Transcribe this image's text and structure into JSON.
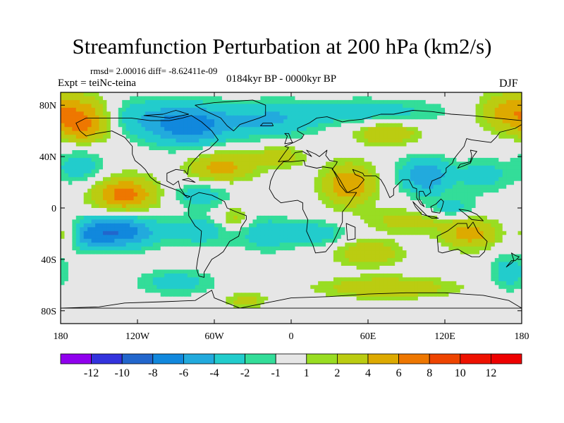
{
  "chart_data": {
    "type": "heatmap",
    "title": "Streamfunction Perturbation at 200 hPa (km2/s)",
    "stats_text": "rmsd= 2.00016 diff= -8.62411e-09",
    "experiment_text": "Expt = teiNc-teina",
    "period_text": "0184kyr BP - 0000kyr BP",
    "season": "DJF",
    "x_range": [
      -180,
      180
    ],
    "y_range": [
      -90,
      90
    ],
    "xticks": [
      {
        "value": -180,
        "label": "180"
      },
      {
        "value": -120,
        "label": "120W"
      },
      {
        "value": -60,
        "label": "60W"
      },
      {
        "value": 0,
        "label": "0"
      },
      {
        "value": 60,
        "label": "60E"
      },
      {
        "value": 120,
        "label": "120E"
      },
      {
        "value": 180,
        "label": "180"
      }
    ],
    "yticks": [
      {
        "value": 80,
        "label": "80N"
      },
      {
        "value": 40,
        "label": "40N"
      },
      {
        "value": 0,
        "label": "0"
      },
      {
        "value": -40,
        "label": "40S"
      },
      {
        "value": -80,
        "label": "80S"
      }
    ],
    "colorbar": {
      "levels": [
        "-12",
        "-10",
        "-8",
        "-6",
        "-4",
        "-2",
        "-1",
        "1",
        "2",
        "4",
        "6",
        "8",
        "10",
        "12"
      ],
      "colors": [
        "#9000ee",
        "#3333dd",
        "#2266cc",
        "#1188dd",
        "#22aadd",
        "#22cccc",
        "#33dd99",
        "#e6e6e6",
        "#99dd22",
        "#bbcc11",
        "#ddaa00",
        "#ee7700",
        "#ee4400",
        "#ee1100",
        "#ee0000"
      ]
    },
    "field_centers": [
      {
        "lon": -165,
        "lat": 72,
        "value": 6,
        "r_lon": 24,
        "r_lat": 16
      },
      {
        "lon": -120,
        "lat": 70,
        "value": -3,
        "r_lon": 30,
        "r_lat": 16
      },
      {
        "lon": -80,
        "lat": 64,
        "value": -7,
        "r_lon": 30,
        "r_lat": 16
      },
      {
        "lon": -20,
        "lat": 68,
        "value": -4,
        "r_lon": 40,
        "r_lat": 14
      },
      {
        "lon": 60,
        "lat": 75,
        "value": -3,
        "r_lon": 60,
        "r_lat": 10
      },
      {
        "lon": 165,
        "lat": 75,
        "value": 4,
        "r_lon": 20,
        "r_lat": 14
      },
      {
        "lon": 75,
        "lat": 58,
        "value": 4,
        "r_lon": 25,
        "r_lat": 9
      },
      {
        "lon": -55,
        "lat": 32,
        "value": 5,
        "r_lon": 25,
        "r_lat": 12
      },
      {
        "lon": -10,
        "lat": 40,
        "value": 3,
        "r_lon": 20,
        "r_lat": 9
      },
      {
        "lon": -130,
        "lat": 10,
        "value": 7,
        "r_lon": 25,
        "r_lat": 14
      },
      {
        "lon": -165,
        "lat": 32,
        "value": -3,
        "r_lon": 20,
        "r_lat": 14
      },
      {
        "lon": -70,
        "lat": 10,
        "value": -3,
        "r_lon": 25,
        "r_lat": 10
      },
      {
        "lon": -135,
        "lat": -18,
        "value": -8,
        "r_lon": 30,
        "r_lat": 13
      },
      {
        "lon": -160,
        "lat": -22,
        "value": -3,
        "r_lon": 15,
        "r_lat": 10
      },
      {
        "lon": -70,
        "lat": -18,
        "value": -3,
        "r_lon": 25,
        "r_lat": 12
      },
      {
        "lon": -45,
        "lat": -8,
        "value": 3,
        "r_lon": 12,
        "r_lat": 10
      },
      {
        "lon": -20,
        "lat": -20,
        "value": -3,
        "r_lon": 22,
        "r_lat": 14
      },
      {
        "lon": -90,
        "lat": -58,
        "value": -3,
        "r_lon": 30,
        "r_lat": 10
      },
      {
        "lon": -35,
        "lat": -72,
        "value": 3,
        "r_lon": 15,
        "r_lat": 6
      },
      {
        "lon": 45,
        "lat": 18,
        "value": 6,
        "r_lon": 20,
        "r_lat": 16
      },
      {
        "lon": 105,
        "lat": 25,
        "value": -6,
        "r_lon": 20,
        "r_lat": 14
      },
      {
        "lon": 150,
        "lat": 25,
        "value": -3,
        "r_lon": 20,
        "r_lat": 13
      },
      {
        "lon": 125,
        "lat": 0,
        "value": -3,
        "r_lon": 20,
        "r_lat": 8
      },
      {
        "lon": 90,
        "lat": -10,
        "value": 3,
        "r_lon": 30,
        "r_lat": 9
      },
      {
        "lon": 140,
        "lat": -20,
        "value": 5,
        "r_lon": 22,
        "r_lat": 12
      },
      {
        "lon": 20,
        "lat": -20,
        "value": -3,
        "r_lon": 25,
        "r_lat": 10
      },
      {
        "lon": 60,
        "lat": -35,
        "value": 4,
        "r_lon": 25,
        "r_lat": 10
      },
      {
        "lon": 75,
        "lat": -62,
        "value": 4,
        "r_lon": 50,
        "r_lat": 8
      },
      {
        "lon": 170,
        "lat": -50,
        "value": -3,
        "r_lon": 15,
        "r_lat": 15
      },
      {
        "lon": -175,
        "lat": -20,
        "value": 3,
        "r_lon": 10,
        "r_lat": 9
      },
      {
        "lon": -160,
        "lat": 60,
        "value": 3,
        "r_lon": 20,
        "r_lat": 10
      }
    ]
  }
}
